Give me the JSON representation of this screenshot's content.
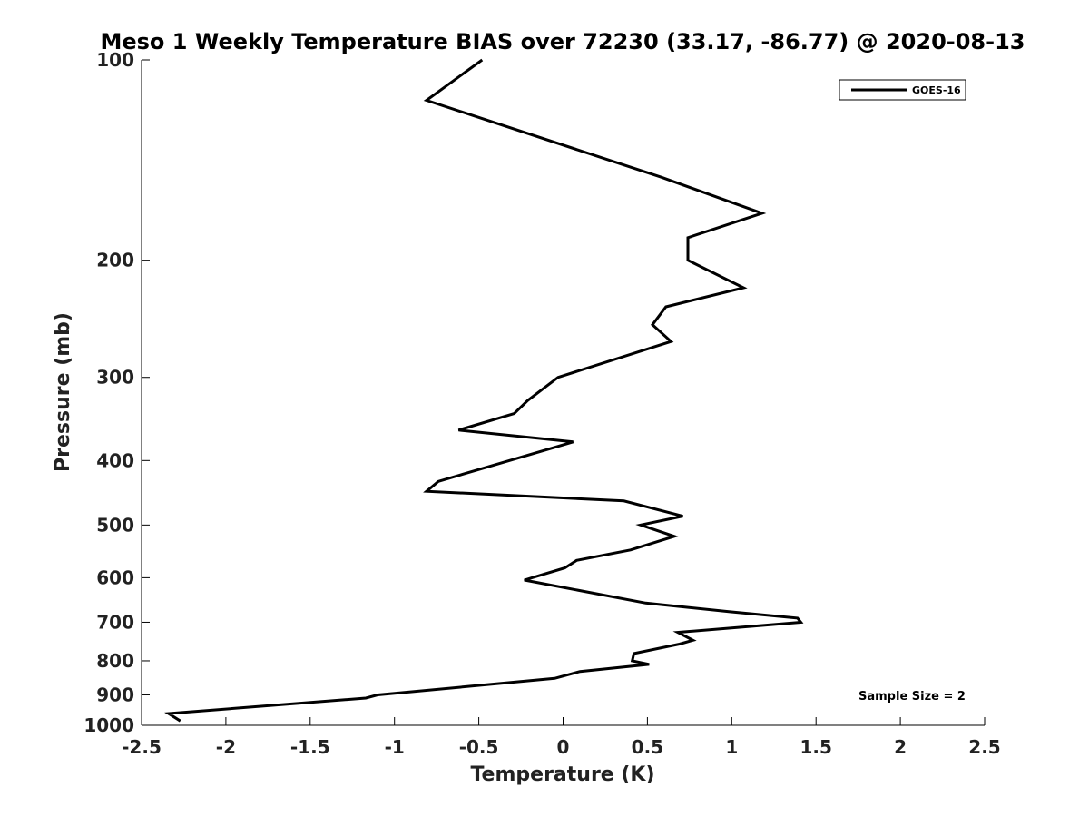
{
  "chart_data": {
    "type": "line",
    "title": "Meso 1 Weekly Temperature BIAS over 72230 (33.17, -86.77) @ 2020-08-13",
    "xlabel": "Temperature (K)",
    "ylabel": "Pressure (mb)",
    "xlim": [
      -2.5,
      2.5
    ],
    "ylim": [
      100,
      1000
    ],
    "y_scale": "log",
    "y_inverted": true,
    "x_ticks": [
      -2.5,
      -2,
      -1.5,
      -1,
      -0.5,
      0,
      0.5,
      1,
      1.5,
      2,
      2.5
    ],
    "x_tick_labels": [
      "-2.5",
      "-2",
      "-1.5",
      "-1",
      "-0.5",
      "0",
      "0.5",
      "1",
      "1.5",
      "2",
      "2.5"
    ],
    "y_ticks": [
      100,
      200,
      300,
      400,
      500,
      600,
      700,
      800,
      900,
      1000
    ],
    "y_tick_labels": [
      "100",
      "200",
      "300",
      "400",
      "500",
      "600",
      "700",
      "800",
      "900",
      "1000"
    ],
    "grid": false,
    "legend_position": "top-right",
    "series": [
      {
        "name": "GOES-16",
        "color": "#000000",
        "points": [
          {
            "x": -0.48,
            "p": 100
          },
          {
            "x": -0.81,
            "p": 115
          },
          {
            "x": 0.58,
            "p": 150
          },
          {
            "x": 1.18,
            "p": 170
          },
          {
            "x": 0.74,
            "p": 185
          },
          {
            "x": 0.74,
            "p": 200
          },
          {
            "x": 1.07,
            "p": 220
          },
          {
            "x": 0.61,
            "p": 235
          },
          {
            "x": 0.53,
            "p": 250
          },
          {
            "x": 0.64,
            "p": 265
          },
          {
            "x": -0.03,
            "p": 300
          },
          {
            "x": -0.21,
            "p": 325
          },
          {
            "x": -0.29,
            "p": 340
          },
          {
            "x": -0.62,
            "p": 360
          },
          {
            "x": 0.06,
            "p": 375
          },
          {
            "x": -0.74,
            "p": 430
          },
          {
            "x": -0.81,
            "p": 445
          },
          {
            "x": 0.36,
            "p": 460
          },
          {
            "x": 0.71,
            "p": 485
          },
          {
            "x": 0.46,
            "p": 500
          },
          {
            "x": 0.66,
            "p": 520
          },
          {
            "x": 0.4,
            "p": 545
          },
          {
            "x": 0.08,
            "p": 565
          },
          {
            "x": 0.01,
            "p": 580
          },
          {
            "x": -0.23,
            "p": 605
          },
          {
            "x": 0.49,
            "p": 655
          },
          {
            "x": 0.99,
            "p": 675
          },
          {
            "x": 1.39,
            "p": 690
          },
          {
            "x": 1.41,
            "p": 700
          },
          {
            "x": 0.68,
            "p": 725
          },
          {
            "x": 0.77,
            "p": 745
          },
          {
            "x": 0.69,
            "p": 755
          },
          {
            "x": 0.42,
            "p": 780
          },
          {
            "x": 0.41,
            "p": 800
          },
          {
            "x": 0.51,
            "p": 810
          },
          {
            "x": 0.1,
            "p": 830
          },
          {
            "x": -0.05,
            "p": 850
          },
          {
            "x": -1.1,
            "p": 900
          },
          {
            "x": -1.17,
            "p": 910
          },
          {
            "x": -2.34,
            "p": 960
          },
          {
            "x": -2.27,
            "p": 985
          }
        ]
      }
    ],
    "annotation": "Sample Size = 2"
  }
}
